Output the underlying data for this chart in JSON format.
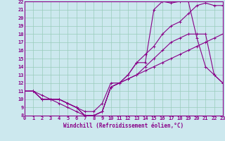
{
  "xlabel": "Windchill (Refroidissement éolien,°C)",
  "bg_color": "#cce8ee",
  "line_color": "#880088",
  "grid_color": "#99ccbb",
  "xmin": 0,
  "xmax": 23,
  "ymin": 8,
  "ymax": 22,
  "series": [
    {
      "x": [
        0,
        1,
        2,
        3,
        4,
        5,
        6,
        7,
        8,
        9,
        10,
        11,
        12,
        13,
        14,
        15,
        16,
        17,
        18,
        19,
        20,
        21,
        22,
        23
      ],
      "y": [
        11,
        11,
        10,
        10,
        10,
        9.5,
        9,
        8.5,
        8.5,
        9.5,
        12,
        12,
        13,
        14.5,
        14.5,
        21,
        22,
        21.8,
        22,
        22,
        17.5,
        14,
        13,
        12
      ]
    },
    {
      "x": [
        0,
        1,
        2,
        3,
        4,
        5,
        6,
        7,
        8,
        9,
        10,
        11,
        12,
        13,
        14,
        15,
        16,
        17,
        18,
        19,
        20,
        21,
        22,
        23
      ],
      "y": [
        11,
        11,
        10,
        10,
        9.5,
        9,
        8.5,
        8,
        8,
        8.5,
        11.5,
        12,
        13,
        14.5,
        15.5,
        16.5,
        18,
        19,
        19.5,
        20.5,
        21.5,
        21.8,
        21.5,
        21.5
      ]
    },
    {
      "x": [
        0,
        1,
        2,
        3,
        4,
        5,
        6,
        7,
        8,
        9,
        10,
        11,
        12,
        13,
        14,
        15,
        16,
        17,
        18,
        19,
        20,
        21,
        22,
        23
      ],
      "y": [
        11,
        11,
        10,
        10,
        10,
        9.5,
        9,
        8,
        8,
        8.5,
        11.5,
        12,
        12.5,
        13,
        14,
        15,
        16,
        17,
        17.5,
        18,
        18,
        18,
        13,
        12
      ]
    },
    {
      "x": [
        0,
        1,
        2,
        3,
        4,
        5,
        6,
        7,
        8,
        9,
        10,
        11,
        12,
        13,
        14,
        15,
        16,
        17,
        18,
        19,
        20,
        21,
        22,
        23
      ],
      "y": [
        11,
        11,
        10.5,
        10,
        10,
        9.5,
        9,
        8,
        8,
        8.5,
        11.5,
        12,
        12.5,
        13,
        13.5,
        14,
        14.5,
        15,
        15.5,
        16,
        16.5,
        17,
        17.5,
        18
      ]
    }
  ]
}
